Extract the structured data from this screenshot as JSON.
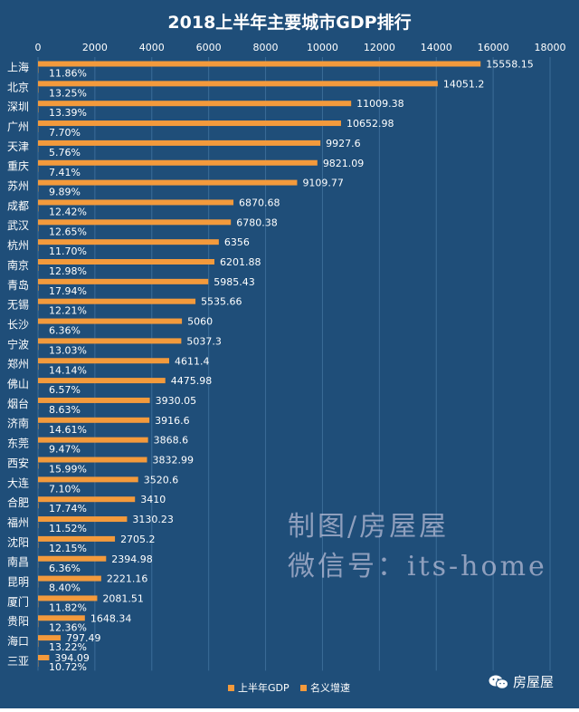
{
  "chart_data": {
    "type": "bar",
    "orientation": "horizontal",
    "title": "2018上半年主要城市GDP排行",
    "xlim": [
      0,
      18000
    ],
    "x_ticks": [
      "0",
      "2000",
      "4000",
      "6000",
      "8000",
      "10000",
      "12000",
      "14000",
      "16000",
      "18000"
    ],
    "x_tick_values": [
      0,
      2000,
      4000,
      6000,
      8000,
      10000,
      12000,
      14000,
      16000,
      18000
    ],
    "grid": true,
    "legend_position": "bottom",
    "categories": [
      "上海",
      "北京",
      "深圳",
      "广州",
      "天津",
      "重庆",
      "苏州",
      "成都",
      "武汉",
      "杭州",
      "南京",
      "青岛",
      "无锡",
      "长沙",
      "宁波",
      "郑州",
      "佛山",
      "烟台",
      "济南",
      "东莞",
      "西安",
      "大连",
      "合肥",
      "福州",
      "沈阳",
      "南昌",
      "昆明",
      "厦门",
      "贵阳",
      "海口",
      "三亚"
    ],
    "series": [
      {
        "name": "上半年GDP",
        "color": "#f39a3c",
        "values": [
          15558.15,
          14051.2,
          11009.38,
          10652.98,
          9927.6,
          9821.09,
          9109.77,
          6870.68,
          6780.38,
          6356,
          6201.88,
          5985.43,
          5535.66,
          5060,
          5037.3,
          4611.4,
          4475.98,
          3930.05,
          3916.6,
          3868.6,
          3832.99,
          3520.6,
          3410,
          3130.23,
          2705.2,
          2394.98,
          2221.16,
          2081.51,
          1648.34,
          797.49,
          394.09
        ],
        "labels": [
          "15558.15",
          "14051.2",
          "11009.38",
          "10652.98",
          "9927.6",
          "9821.09",
          "9109.77",
          "6870.68",
          "6780.38",
          "6356",
          "6201.88",
          "5985.43",
          "5535.66",
          "5060",
          "5037.3",
          "4611.4",
          "4475.98",
          "3930.05",
          "3916.6",
          "3868.6",
          "3832.99",
          "3520.6",
          "3410",
          "3130.23",
          "2705.2",
          "2394.98",
          "2221.16",
          "2081.51",
          "1648.34",
          "797.49",
          "394.09"
        ]
      },
      {
        "name": "名义增速",
        "color": "#f39a3c",
        "values": [
          11.86,
          13.25,
          13.39,
          7.7,
          5.76,
          7.41,
          9.89,
          12.42,
          12.65,
          11.7,
          12.98,
          17.94,
          12.21,
          6.36,
          13.03,
          14.14,
          6.57,
          8.63,
          14.61,
          9.47,
          15.99,
          7.1,
          17.74,
          11.52,
          12.15,
          6.36,
          8.4,
          11.82,
          12.36,
          13.22,
          10.72
        ],
        "labels": [
          "11.86%",
          "13.25%",
          "13.39%",
          "7.70%",
          "5.76%",
          "7.41%",
          "9.89%",
          "12.42%",
          "12.65%",
          "11.70%",
          "12.98%",
          "17.94%",
          "12.21%",
          "6.36%",
          "13.03%",
          "14.14%",
          "6.57%",
          "8.63%",
          "14.61%",
          "9.47%",
          "15.99%",
          "7.10%",
          "17.74%",
          "11.52%",
          "12.15%",
          "6.36%",
          "8.40%",
          "11.82%",
          "12.36%",
          "13.22%",
          "10.72%"
        ]
      }
    ]
  },
  "colors": {
    "background": "#1f4e79",
    "bar": "#f39a3c",
    "grid": "#3b6c98",
    "text": "#ffffff"
  },
  "watermark": {
    "line1": "制图/房屋屋",
    "line2": "微信号：its-home"
  },
  "brand": {
    "icon": "wechat-icon",
    "label": "房屋屋"
  }
}
